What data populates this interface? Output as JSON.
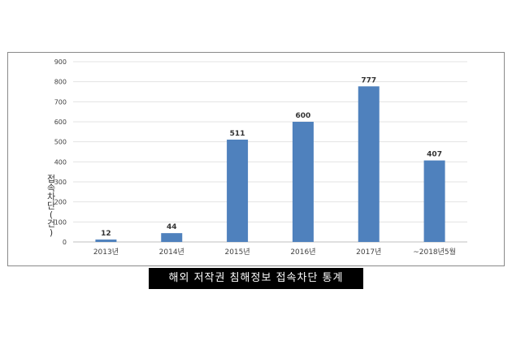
{
  "chart_data": {
    "type": "bar",
    "categories": [
      "2013년",
      "2014년",
      "2015년",
      "2016년",
      "2017년",
      "~2018년5월"
    ],
    "values": [
      12,
      44,
      511,
      600,
      777,
      407
    ],
    "ylabel": "접속차단(건)",
    "ylim": [
      0,
      900
    ],
    "yticks": [
      0,
      100,
      200,
      300,
      400,
      500,
      600,
      700,
      800,
      900
    ],
    "grid": true,
    "bar_color": "#4f81bd",
    "data_labels": true
  },
  "caption": "해외 저작권 침해정보 접속차단 통계"
}
